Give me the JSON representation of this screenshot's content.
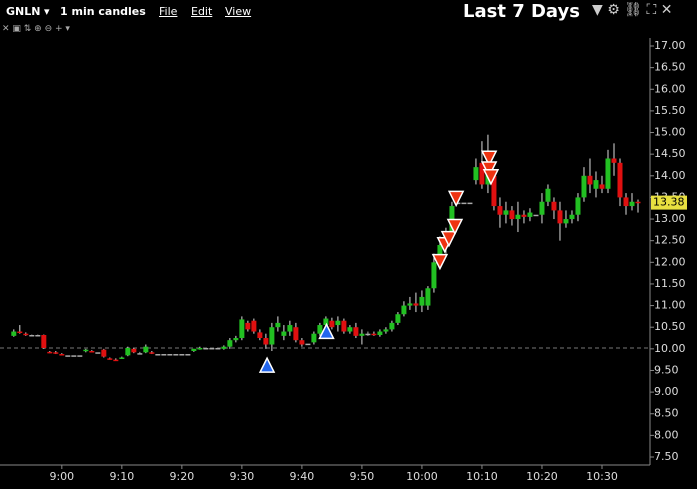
{
  "header": {
    "symbol": "GNLN",
    "interval": "1 min candles",
    "menu": [
      "File",
      "Edit",
      "View"
    ],
    "period": "Last 7 Days"
  },
  "chart_data": {
    "type": "candlestick",
    "up_color": "#22c022",
    "down_color": "#e01010",
    "flat_color": "#aaaaaa",
    "xlim": [
      529.7,
      638
    ],
    "xticks": [
      {
        "value": 540,
        "label": "9:00"
      },
      {
        "value": 550,
        "label": "9:10"
      },
      {
        "value": 560,
        "label": "9:20"
      },
      {
        "value": 570,
        "label": "9:30"
      },
      {
        "value": 580,
        "label": "9:40"
      },
      {
        "value": 590,
        "label": "9:50"
      },
      {
        "value": 600,
        "label": "10:00"
      },
      {
        "value": 610,
        "label": "10:10"
      },
      {
        "value": 620,
        "label": "10:20"
      },
      {
        "value": 630,
        "label": "10:30"
      }
    ],
    "ylim": [
      7.315,
      17.185
    ],
    "yticks": [
      {
        "value": 7.5,
        "label": "7.50"
      },
      {
        "value": 8,
        "label": "8.00"
      },
      {
        "value": 8.5,
        "label": "8.50"
      },
      {
        "value": 9,
        "label": "9.00"
      },
      {
        "value": 9.5,
        "label": "9.50"
      },
      {
        "value": 10,
        "label": "10.00"
      },
      {
        "value": 10.5,
        "label": "10.50"
      },
      {
        "value": 11,
        "label": "11.00"
      },
      {
        "value": 11.5,
        "label": "11.50"
      },
      {
        "value": 12,
        "label": "12.00"
      },
      {
        "value": 12.5,
        "label": "12.50"
      },
      {
        "value": 13,
        "label": "13.00"
      },
      {
        "value": 13.5,
        "label": "13.50"
      },
      {
        "value": 14,
        "label": "14.00"
      },
      {
        "value": 14.5,
        "label": "14.50"
      },
      {
        "value": 15,
        "label": "15.00"
      },
      {
        "value": 15.5,
        "label": "15.50"
      },
      {
        "value": 16,
        "label": "16.00"
      },
      {
        "value": 16.5,
        "label": "16.50"
      },
      {
        "value": 17,
        "label": "17.00"
      }
    ],
    "reference_line": 10.02,
    "last_price": {
      "value": 13.38,
      "label": "13.38"
    },
    "candles": [
      [
        532,
        10.3,
        10.45,
        10.28,
        10.4
      ],
      [
        533,
        10.4,
        10.55,
        10.35,
        10.38
      ],
      [
        534,
        10.35,
        10.38,
        10.3,
        10.33
      ],
      [
        535,
        10.32,
        10.33,
        10.32,
        10.32
      ],
      [
        536,
        10.32,
        10.33,
        10.32,
        10.32
      ],
      [
        537,
        10.32,
        10.33,
        10.0,
        10.02
      ],
      [
        538,
        9.93,
        9.95,
        9.9,
        9.92
      ],
      [
        539,
        9.92,
        9.95,
        9.88,
        9.9
      ],
      [
        540,
        9.88,
        9.9,
        9.85,
        9.86
      ],
      [
        541,
        9.85,
        9.85,
        9.85,
        9.85
      ],
      [
        542,
        9.85,
        9.85,
        9.85,
        9.85
      ],
      [
        543,
        9.85,
        9.85,
        9.85,
        9.85
      ],
      [
        544,
        9.95,
        10.0,
        9.92,
        9.98
      ],
      [
        545,
        9.95,
        9.97,
        9.92,
        9.93
      ],
      [
        546,
        9.92,
        9.92,
        9.92,
        9.92
      ],
      [
        547,
        9.98,
        10.0,
        9.8,
        9.82
      ],
      [
        548,
        9.78,
        9.8,
        9.75,
        9.76
      ],
      [
        549,
        9.75,
        9.78,
        9.73,
        9.74
      ],
      [
        550,
        9.78,
        9.82,
        9.77,
        9.8
      ],
      [
        551,
        9.85,
        10.05,
        9.83,
        10.02
      ],
      [
        552,
        10.0,
        10.02,
        9.9,
        9.92
      ],
      [
        553,
        9.9,
        9.93,
        9.88,
        9.9
      ],
      [
        554,
        9.92,
        10.1,
        9.9,
        10.05
      ],
      [
        555,
        9.92,
        9.95,
        9.88,
        9.9
      ],
      [
        556,
        9.88,
        9.88,
        9.88,
        9.88
      ],
      [
        557,
        9.88,
        9.88,
        9.88,
        9.88
      ],
      [
        558,
        9.88,
        9.88,
        9.88,
        9.88
      ],
      [
        559,
        9.88,
        9.88,
        9.88,
        9.88
      ],
      [
        560,
        9.88,
        9.88,
        9.88,
        9.88
      ],
      [
        561,
        9.88,
        9.88,
        9.88,
        9.88
      ],
      [
        562,
        9.95,
        10.0,
        9.93,
        10.0
      ],
      [
        563,
        10.0,
        10.05,
        9.98,
        10.02
      ],
      [
        564,
        10.02,
        10.02,
        10.02,
        10.02
      ],
      [
        565,
        10.02,
        10.02,
        10.02,
        10.02
      ],
      [
        566,
        10.02,
        10.02,
        10.02,
        10.02
      ],
      [
        567,
        10.0,
        10.08,
        9.98,
        10.05
      ],
      [
        568,
        10.05,
        10.25,
        10.0,
        10.2
      ],
      [
        569,
        10.2,
        10.3,
        10.15,
        10.25
      ],
      [
        570,
        10.25,
        10.75,
        10.2,
        10.68
      ],
      [
        571,
        10.6,
        10.65,
        10.4,
        10.45
      ],
      [
        572,
        10.65,
        10.7,
        10.35,
        10.4
      ],
      [
        573,
        10.38,
        10.45,
        10.2,
        10.25
      ],
      [
        574,
        10.25,
        10.35,
        10.0,
        10.1
      ],
      [
        575,
        10.1,
        10.6,
        9.95,
        10.5
      ],
      [
        576,
        10.5,
        10.75,
        10.4,
        10.6
      ],
      [
        577,
        10.3,
        10.55,
        10.2,
        10.4
      ],
      [
        578,
        10.4,
        10.65,
        10.3,
        10.55
      ],
      [
        579,
        10.5,
        10.6,
        10.15,
        10.2
      ],
      [
        580,
        10.2,
        10.25,
        10.05,
        10.1
      ],
      [
        581,
        10.12,
        10.12,
        10.12,
        10.12
      ],
      [
        582,
        10.15,
        10.4,
        10.1,
        10.35
      ],
      [
        583,
        10.35,
        10.6,
        10.3,
        10.55
      ],
      [
        584,
        10.55,
        10.75,
        10.4,
        10.7
      ],
      [
        585,
        10.65,
        10.72,
        10.45,
        10.5
      ],
      [
        586,
        10.55,
        10.75,
        10.4,
        10.65
      ],
      [
        587,
        10.65,
        10.7,
        10.35,
        10.4
      ],
      [
        588,
        10.4,
        10.55,
        10.35,
        10.5
      ],
      [
        589,
        10.5,
        10.6,
        10.25,
        10.3
      ],
      [
        590,
        10.3,
        10.45,
        10.1,
        10.35
      ],
      [
        591,
        10.35,
        10.4,
        10.3,
        10.35
      ],
      [
        592,
        10.35,
        10.4,
        10.3,
        10.32
      ],
      [
        593,
        10.32,
        10.45,
        10.28,
        10.4
      ],
      [
        594,
        10.4,
        10.5,
        10.35,
        10.45
      ],
      [
        595,
        10.45,
        10.65,
        10.4,
        10.6
      ],
      [
        596,
        10.6,
        10.85,
        10.55,
        10.8
      ],
      [
        597,
        10.8,
        11.1,
        10.75,
        11.0
      ],
      [
        598,
        11.0,
        11.2,
        10.9,
        11.05
      ],
      [
        599,
        11.05,
        11.3,
        10.85,
        11.0
      ],
      [
        600,
        11.0,
        11.35,
        10.85,
        11.2
      ],
      [
        601,
        11.0,
        11.45,
        10.9,
        11.4
      ],
      [
        602,
        11.4,
        12.2,
        11.3,
        12.0
      ],
      [
        603,
        12.0,
        12.6,
        11.95,
        12.4
      ],
      [
        604,
        12.4,
        12.8,
        12.2,
        12.65
      ],
      [
        605,
        12.7,
        13.4,
        12.6,
        13.3
      ],
      [
        606,
        13.38,
        13.38,
        13.38,
        13.38
      ],
      [
        607,
        13.38,
        13.38,
        13.38,
        13.38
      ],
      [
        608,
        13.38,
        13.38,
        13.38,
        13.38
      ],
      [
        609,
        13.9,
        14.4,
        13.8,
        14.2
      ],
      [
        610,
        14.3,
        14.8,
        13.7,
        13.8
      ],
      [
        611,
        13.8,
        14.95,
        13.6,
        14.1
      ],
      [
        612,
        14.0,
        14.1,
        13.2,
        13.3
      ],
      [
        613,
        13.3,
        13.5,
        12.8,
        13.1
      ],
      [
        614,
        13.1,
        13.4,
        12.9,
        13.2
      ],
      [
        615,
        13.2,
        13.3,
        12.85,
        13.0
      ],
      [
        616,
        13.0,
        13.4,
        12.7,
        13.1
      ],
      [
        617,
        13.1,
        13.2,
        12.9,
        13.05
      ],
      [
        618,
        13.05,
        13.25,
        12.95,
        13.15
      ],
      [
        619,
        13.1,
        13.1,
        13.1,
        13.1
      ],
      [
        620,
        13.1,
        13.6,
        12.9,
        13.4
      ],
      [
        621,
        13.4,
        13.8,
        13.3,
        13.7
      ],
      [
        622,
        13.4,
        13.5,
        13.0,
        13.2
      ],
      [
        623,
        13.2,
        13.4,
        12.5,
        12.9
      ],
      [
        624,
        12.9,
        13.2,
        12.8,
        13.0
      ],
      [
        625,
        13.0,
        13.2,
        12.9,
        13.1
      ],
      [
        626,
        13.1,
        13.6,
        12.95,
        13.5
      ],
      [
        627,
        13.5,
        14.2,
        13.4,
        14.0
      ],
      [
        628,
        14.0,
        14.4,
        13.6,
        13.8
      ],
      [
        629,
        13.7,
        14.1,
        13.5,
        13.9
      ],
      [
        630,
        13.8,
        14.0,
        13.6,
        13.7
      ],
      [
        631,
        13.7,
        14.6,
        13.6,
        14.4
      ],
      [
        632,
        14.4,
        14.75,
        14.0,
        14.3
      ],
      [
        633,
        14.3,
        14.4,
        13.3,
        13.5
      ],
      [
        634,
        13.5,
        13.6,
        13.1,
        13.3
      ],
      [
        635,
        13.3,
        13.6,
        13.2,
        13.4
      ],
      [
        636,
        13.4,
        13.45,
        13.15,
        13.38
      ]
    ],
    "trades": [
      {
        "side": "buy",
        "x": 574.2,
        "price": 9.6
      },
      {
        "side": "buy",
        "x": 584.1,
        "price": 10.38
      },
      {
        "side": "sell",
        "x": 603,
        "price": 12.04
      },
      {
        "side": "sell",
        "x": 603.8,
        "price": 12.43
      },
      {
        "side": "sell",
        "x": 604.5,
        "price": 12.57
      },
      {
        "side": "sell",
        "x": 605.5,
        "price": 12.85
      },
      {
        "side": "sell",
        "x": 605.7,
        "price": 13.5
      },
      {
        "side": "sell",
        "x": 611.2,
        "price": 14.43
      },
      {
        "side": "sell",
        "x": 611.2,
        "price": 14.18
      },
      {
        "side": "sell",
        "x": 611.5,
        "price": 14.0
      }
    ]
  }
}
